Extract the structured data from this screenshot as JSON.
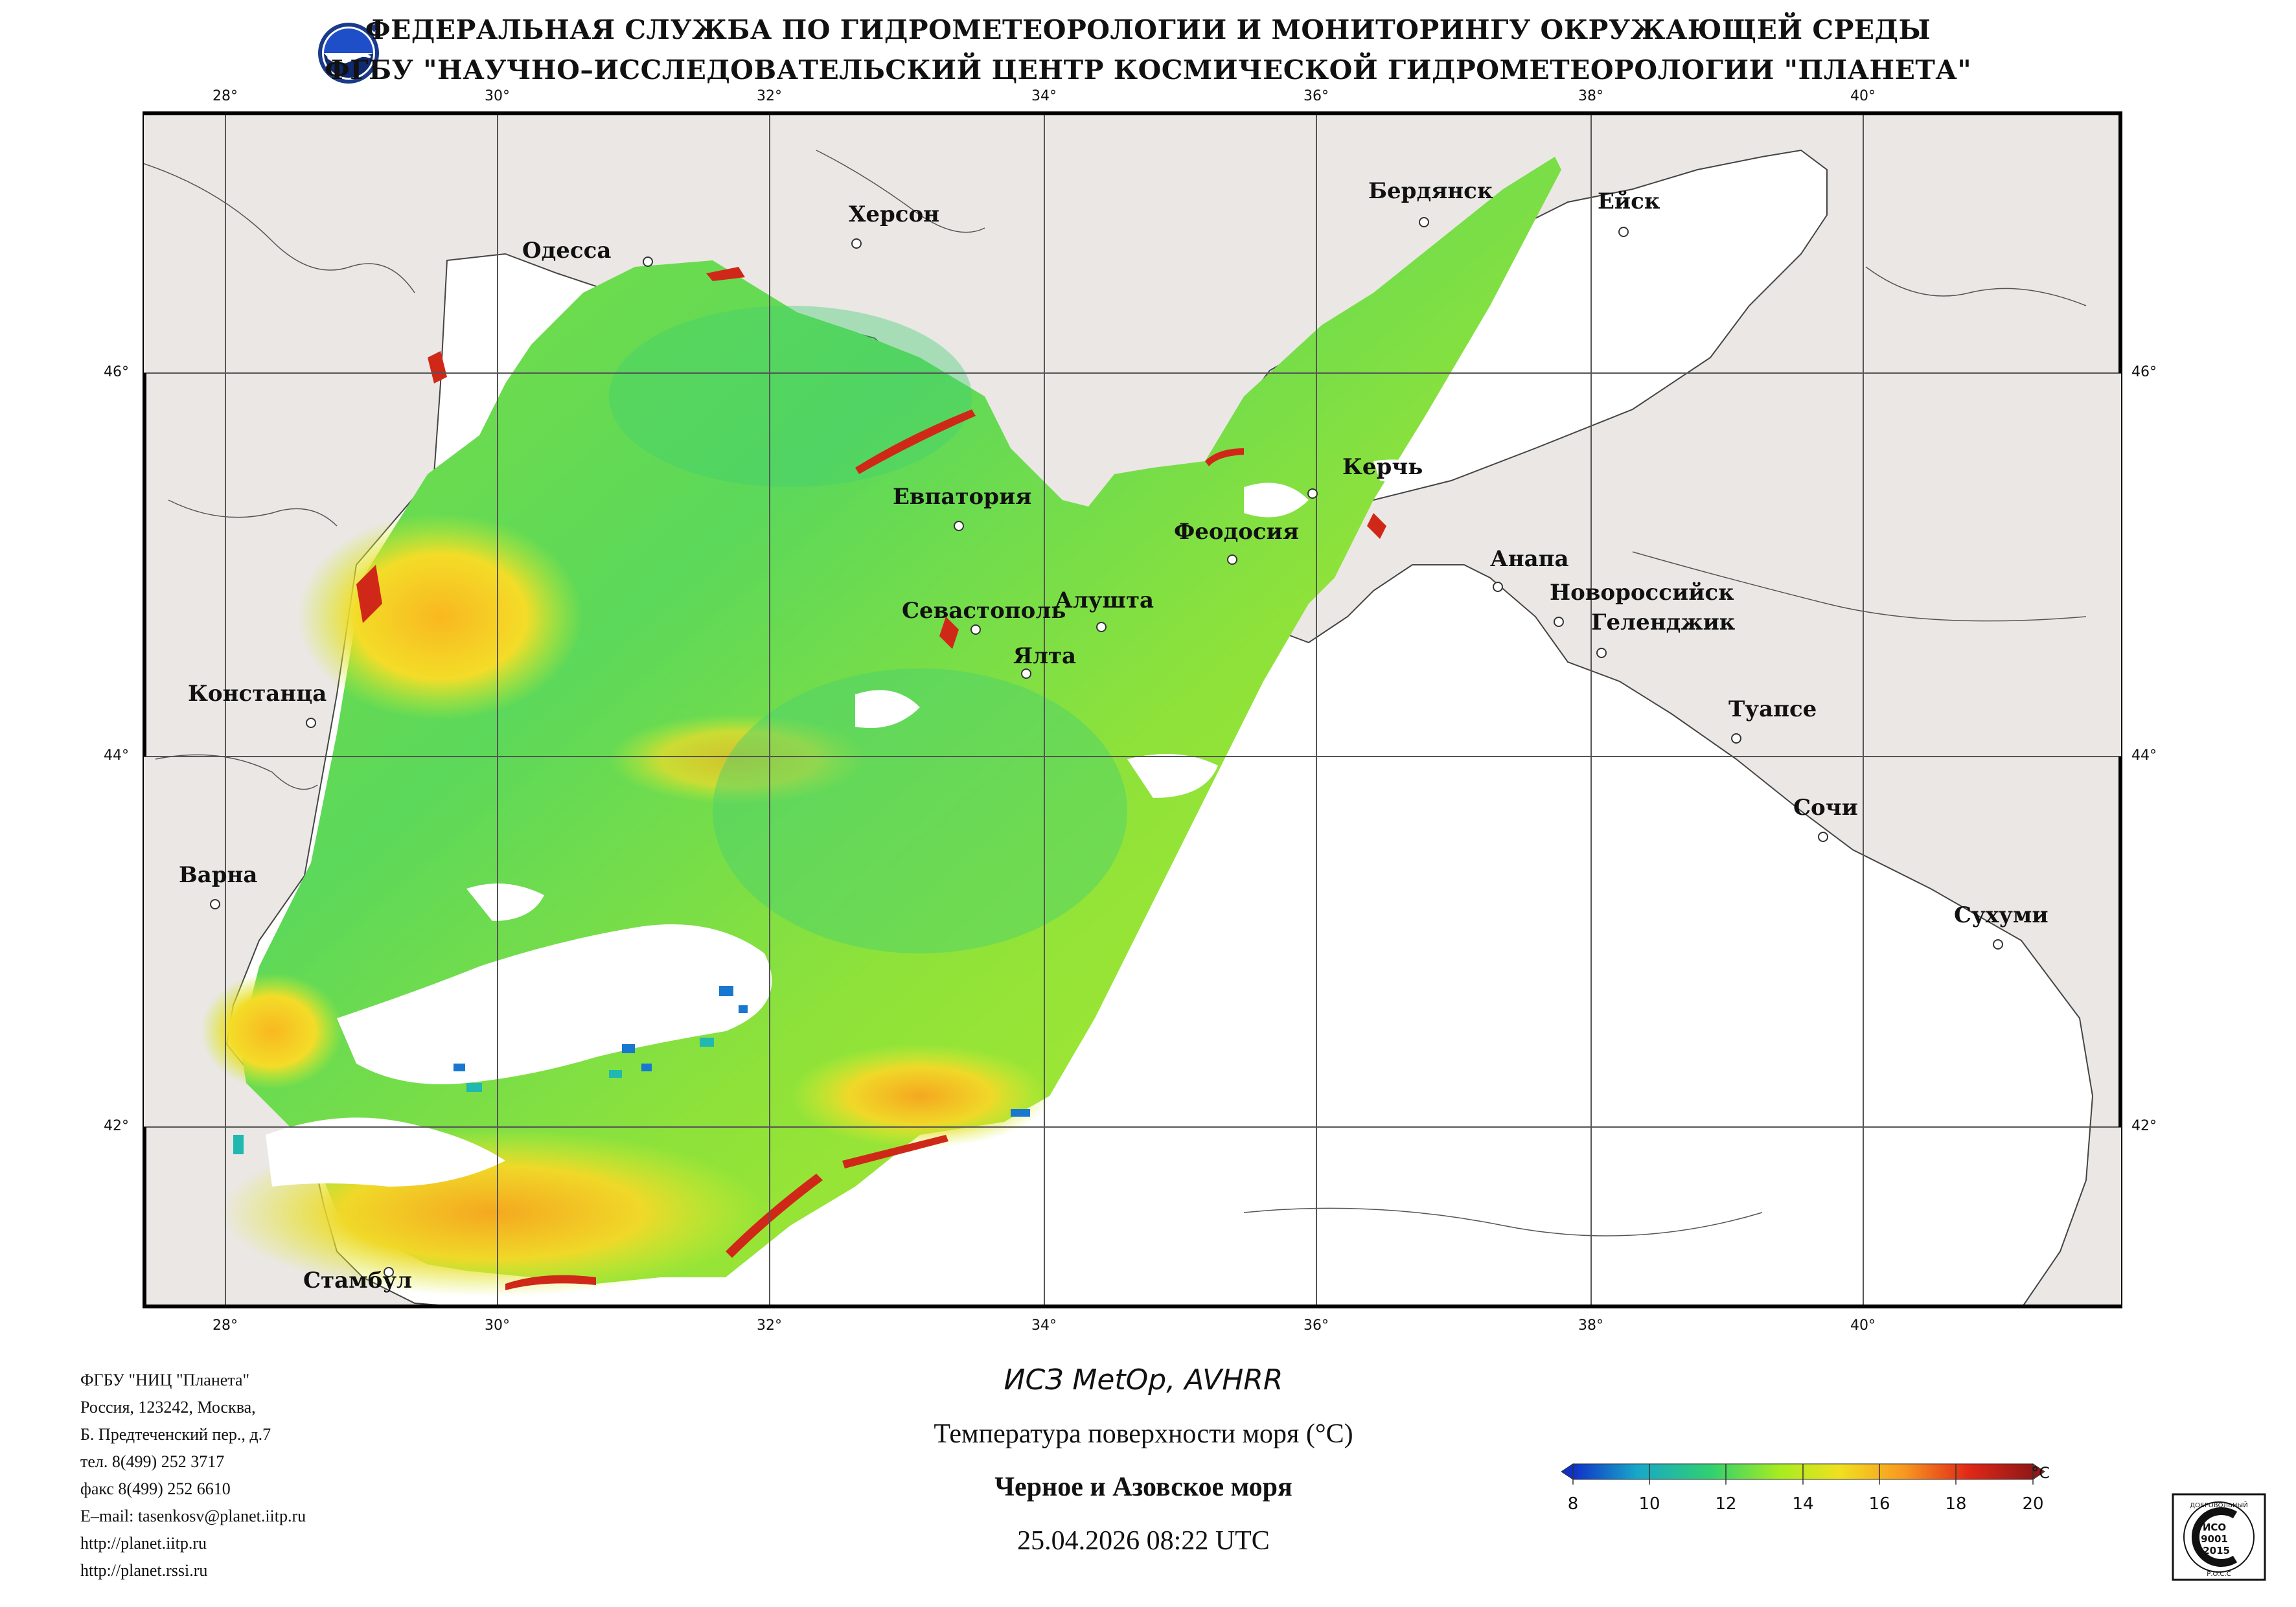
{
  "header": {
    "line1": "ФЕДЕРАЛЬНАЯ СЛУЖБА ПО ГИДРОМЕТЕОРОЛОГИИ И МОНИТОРИНГУ ОКРУЖАЮЩЕЙ СРЕДЫ",
    "line2": "ФГБУ \"НАУЧНО–ИССЛЕДОВАТЕЛЬСКИЙ ЦЕНТР КОСМИЧЕСКОЙ ГИДРОМЕТЕОРОЛОГИИ \"ПЛАНЕТА\""
  },
  "map": {
    "lon_labels": [
      "28°",
      "30°",
      "32°",
      "34°",
      "36°",
      "38°",
      "40°"
    ],
    "lat_labels": [
      "46°",
      "44°",
      "42°"
    ],
    "cities": [
      {
        "name": "Одесса"
      },
      {
        "name": "Херсон"
      },
      {
        "name": "Бердянск"
      },
      {
        "name": "Ейск"
      },
      {
        "name": "Керчь"
      },
      {
        "name": "Евпатория"
      },
      {
        "name": "Феодосия"
      },
      {
        "name": "Алушта"
      },
      {
        "name": "Севастополь"
      },
      {
        "name": "Ялта"
      },
      {
        "name": "Анапа"
      },
      {
        "name": "Новороссийск"
      },
      {
        "name": "Геленджик"
      },
      {
        "name": "Констанца"
      },
      {
        "name": "Туапсе"
      },
      {
        "name": "Сочи"
      },
      {
        "name": "Варна"
      },
      {
        "name": "Сухуми"
      },
      {
        "name": "Стамбул"
      }
    ],
    "colors": {
      "land": "#ebe7e4",
      "no_data": "#ffffff",
      "coast": "#333333",
      "grid": "#555555"
    }
  },
  "info": {
    "lines": [
      "ФГБУ \"НИЦ \"Планета\"",
      "Россия, 123242, Москва,",
      "Б. Предтеченский пер., д.7",
      "тел. 8(499) 252 3717",
      "факс 8(499) 252 6610",
      "E–mail: tasenkosv@planet.iitp.ru",
      "http://planet.iitp.ru",
      "http://planet.rssi.ru"
    ]
  },
  "caption": {
    "sensor": "ИСЗ MetOp, AVHRR",
    "product": "Температура поверхности моря (°C)",
    "region": "Черное и Азовское моря",
    "datetime": "25.04.2026 08:22 UTC"
  },
  "colorbar": {
    "unit": "°C",
    "ticks": [
      "8",
      "10",
      "12",
      "14",
      "16",
      "18",
      "20"
    ],
    "min": 8,
    "max": 20,
    "stops": [
      "#1030c8",
      "#18a8c8",
      "#30d070",
      "#a8ec20",
      "#f0e020",
      "#f89820",
      "#e02818",
      "#901818"
    ]
  },
  "badge": {
    "top_text": "ДОБРОВОЛЬНЫЙ",
    "line1": "ИСО",
    "line2": "9001",
    "line3": "-2015",
    "bottom_text": "Р.О.С.С"
  }
}
